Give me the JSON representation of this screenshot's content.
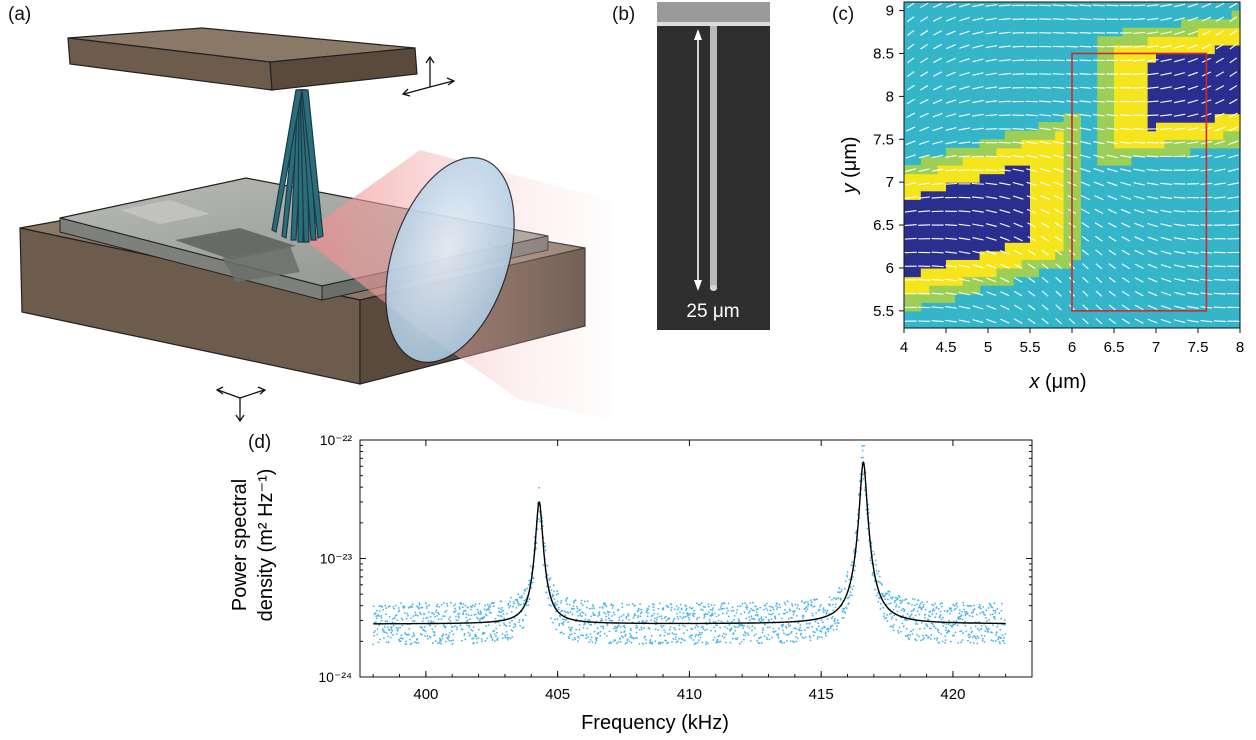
{
  "panels": {
    "a": {
      "label": "(a)"
    },
    "b": {
      "label": "(b)",
      "scale_bar": "25 μm"
    },
    "c": {
      "label": "(c)",
      "xlabel_var": "x",
      "xlabel_unit": "(μm)",
      "ylabel_var": "y",
      "ylabel_unit": "(μm)"
    },
    "d": {
      "label": "(d)"
    }
  },
  "colors": {
    "stage_brown": "#6e5e4c",
    "chip_gray": "#9a9c98",
    "laser_red": "#f3b3b3",
    "lens_blue": "#c9dff0",
    "map_dark": "#2a2f8f",
    "map_yellow": "#f6e51c",
    "map_mid": "#34b5c9",
    "roi_red": "#d62728",
    "psd_points": "#46b4e4",
    "psd_fit": "#000000"
  },
  "chart_data": [
    {
      "type": "heatmap",
      "panel": "c",
      "xlabel": "x (μm)",
      "ylabel": "y (μm)",
      "xlim": [
        4,
        8
      ],
      "ylim": [
        5.3,
        9.1
      ],
      "xticks": [
        "4",
        "4.5",
        "5",
        "5.5",
        "6",
        "6.5",
        "7",
        "7.5",
        "8"
      ],
      "yticks": [
        "5.5",
        "6",
        "6.5",
        "7",
        "7.5",
        "8",
        "8.5",
        "9"
      ],
      "overlay": "vector field arrows",
      "roi_rectangle": {
        "x": [
          6.0,
          7.6
        ],
        "y": [
          5.5,
          8.5
        ]
      }
    },
    {
      "type": "scatter",
      "panel": "d",
      "xlabel": "Frequency (kHz)",
      "ylabel_line1": "Power spectral",
      "ylabel_line2": "density (m² Hz⁻¹)",
      "xlim": [
        397.5,
        423
      ],
      "ylim": [
        1e-24,
        1e-22
      ],
      "log_y": true,
      "xticks": [
        "400",
        "405",
        "410",
        "415",
        "420"
      ],
      "yticks": [
        "10⁻²²",
        "10⁻²³",
        "10⁻²⁴"
      ],
      "baseline": 2.8e-24,
      "peaks": [
        {
          "frequency": 404.3,
          "psd": 3e-23
        },
        {
          "frequency": 416.6,
          "psd": 6.5e-23
        }
      ],
      "series": [
        {
          "style": "points",
          "x_range": [
            398,
            422
          ]
        },
        {
          "style": "fit line"
        }
      ]
    }
  ]
}
